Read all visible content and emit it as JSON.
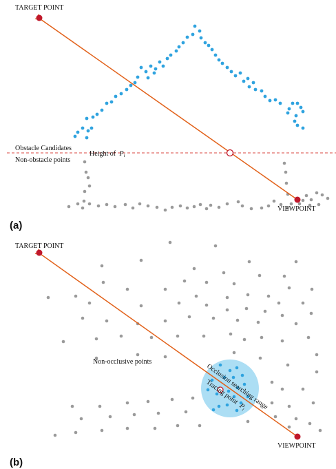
{
  "colors": {
    "ray": "#e2621b",
    "endpoint": "#c0182b",
    "obstacle_point": "#2fa3df",
    "ground_point": "#9a9a9a",
    "height_line": "#d9463f",
    "search_range_fill": "#a8dcf3"
  },
  "panel_a": {
    "label": "(a)",
    "target_label": "TARGET POINT",
    "viewpoint_label": "VIEWPOINT",
    "obstacle_candidates_label": "Obstacle Candidates",
    "non_obstacle_label": "Non-obstacle points",
    "height_label_prefix": "Height of",
    "height_label_symbol": "P",
    "height_label_subscript": "i"
  },
  "panel_b": {
    "label": "(b)",
    "target_label": "TARGET POINT",
    "viewpoint_label": "VIEWPOINT",
    "non_occlusive_label": "Non-occlusive points",
    "search_range_label": "Occlusion searching range",
    "tracing_label_prefix": "Tracing point",
    "tracing_symbol": "P",
    "tracing_subscript": "i"
  }
}
